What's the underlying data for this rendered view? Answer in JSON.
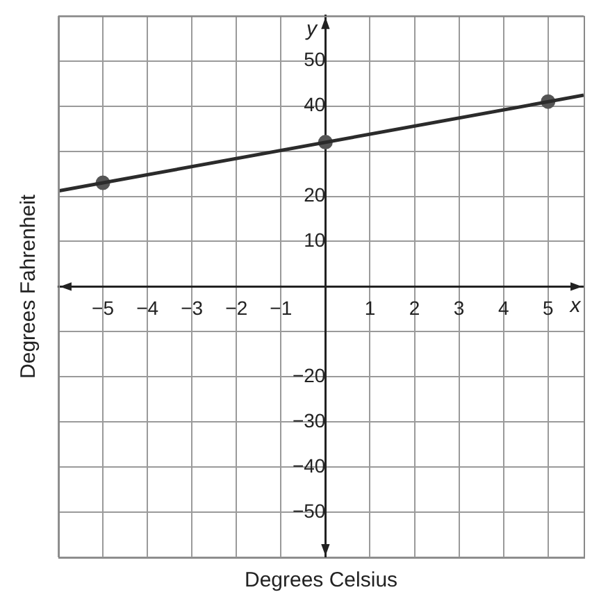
{
  "chart_data": {
    "type": "scatter",
    "xlabel": "Degrees Celsius",
    "ylabel": "Degrees Fahrenheit",
    "series": [
      {
        "type": "line",
        "x": [
          -6,
          5.8
        ],
        "values": [
          21.2,
          42.4
        ],
        "color": "#2b2b2b",
        "marker": "none"
      },
      {
        "x": [
          -5,
          0,
          5
        ],
        "values": [
          23,
          32,
          41
        ],
        "color": "#555555",
        "marker": "circle"
      }
    ],
    "xlim": [
      -6,
      5.8
    ],
    "ylim": [
      -60,
      60
    ],
    "xticks": [
      {
        "value": -6,
        "label": null
      },
      {
        "value": -5,
        "label": "−5"
      },
      {
        "value": -4,
        "label": "−4"
      },
      {
        "value": -3,
        "label": "−3"
      },
      {
        "value": -2,
        "label": "−2"
      },
      {
        "value": -1,
        "label": "−1"
      },
      {
        "value": 0,
        "label": null
      },
      1,
      2,
      3,
      4,
      5
    ],
    "yticks": [
      {
        "value": -60,
        "label": null
      },
      {
        "value": -50,
        "label": "−50"
      },
      {
        "value": -40,
        "label": "−40"
      },
      {
        "value": -30,
        "label": "−30"
      },
      {
        "value": -20,
        "label": "−20"
      },
      {
        "value": -10,
        "label": null
      },
      {
        "value": 0,
        "label": null
      },
      10,
      20,
      {
        "value": 30,
        "label": null
      },
      40,
      50,
      {
        "value": 60,
        "label": null
      }
    ],
    "annotations": [
      "y",
      "x"
    ],
    "grid": true,
    "legend": false
  }
}
